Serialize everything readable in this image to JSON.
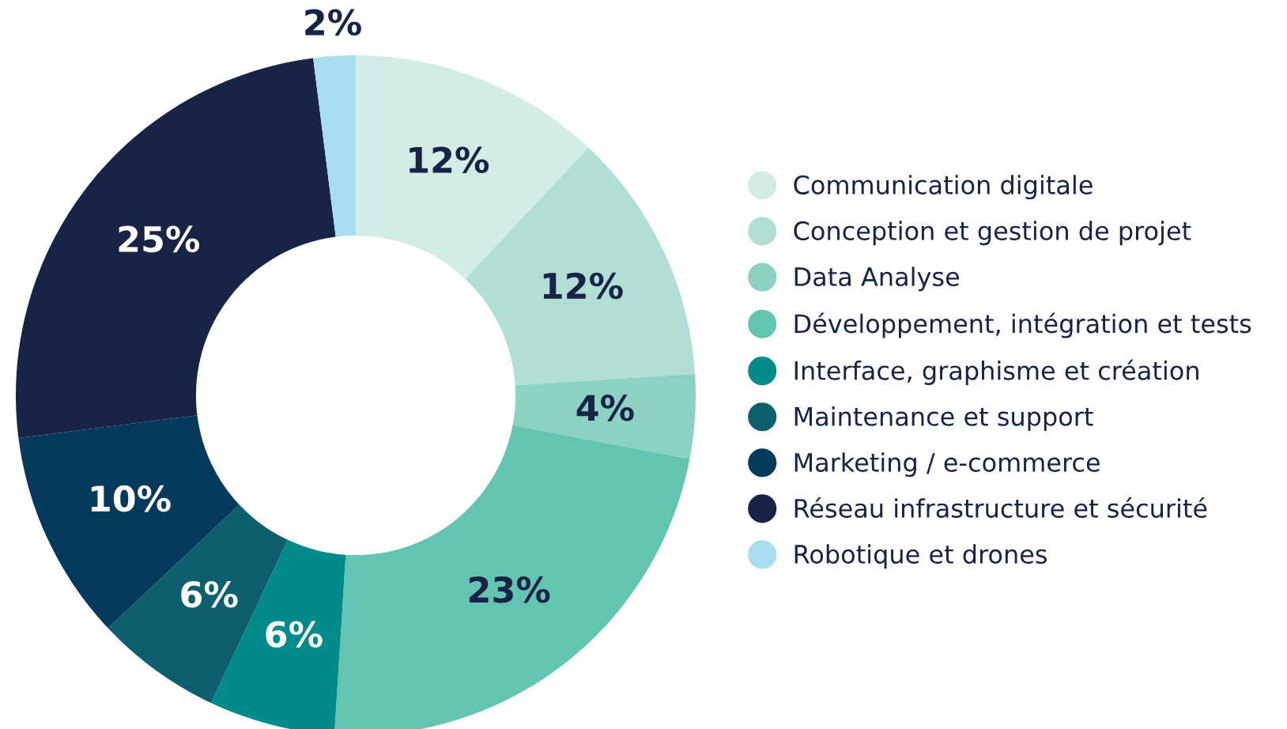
{
  "chart_data": {
    "type": "donut",
    "categories": [
      "Communication digitale",
      "Conception et gestion de projet",
      "Data Analyse",
      "Développement, intégration et tests",
      "Interface, graphisme et création",
      "Maintenance et support",
      "Marketing / e-commerce",
      "Réseau infrastructure et sécurité",
      "Robotique et drones"
    ],
    "values": [
      12,
      12,
      4,
      23,
      6,
      6,
      10,
      25,
      2
    ],
    "value_labels": [
      "12%",
      "12%",
      "4%",
      "23%",
      "6%",
      "6%",
      "10%",
      "25%",
      "2%"
    ],
    "colors": [
      "#d4ece6",
      "#b2dfd5",
      "#8dd1c2",
      "#63c5b1",
      "#008a8a",
      "#0d5f6e",
      "#053a5c",
      "#172445",
      "#a8dcf0"
    ],
    "legend": "right"
  }
}
